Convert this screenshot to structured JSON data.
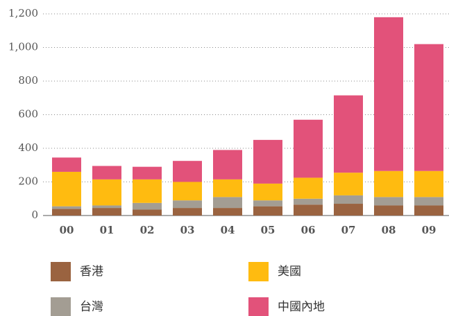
{
  "chart_data": {
    "type": "bar",
    "categories": [
      "00",
      "01",
      "02",
      "03",
      "04",
      "05",
      "06",
      "07",
      "08",
      "09"
    ],
    "series": [
      {
        "name": "香港",
        "color": "#9a6340",
        "values": [
          40,
          45,
          35,
          45,
          45,
          55,
          65,
          70,
          60,
          60
        ]
      },
      {
        "name": "台灣",
        "color": "#a39d93",
        "values": [
          15,
          15,
          40,
          45,
          65,
          35,
          35,
          50,
          50,
          50
        ]
      },
      {
        "name": "美國",
        "color": "#ffbb10",
        "values": [
          205,
          155,
          140,
          110,
          105,
          100,
          125,
          135,
          155,
          155
        ]
      },
      {
        "name": "中國內地",
        "color": "#e2527a",
        "values": [
          85,
          80,
          75,
          125,
          175,
          260,
          345,
          460,
          915,
          755
        ]
      }
    ],
    "stacked": true,
    "ylim": [
      0,
      1200
    ],
    "yticks": [
      0,
      200,
      400,
      600,
      800,
      {
        "value": 1000,
        "label": "1,000"
      },
      {
        "value": 1200,
        "label": "1,200"
      }
    ],
    "grid": true
  }
}
